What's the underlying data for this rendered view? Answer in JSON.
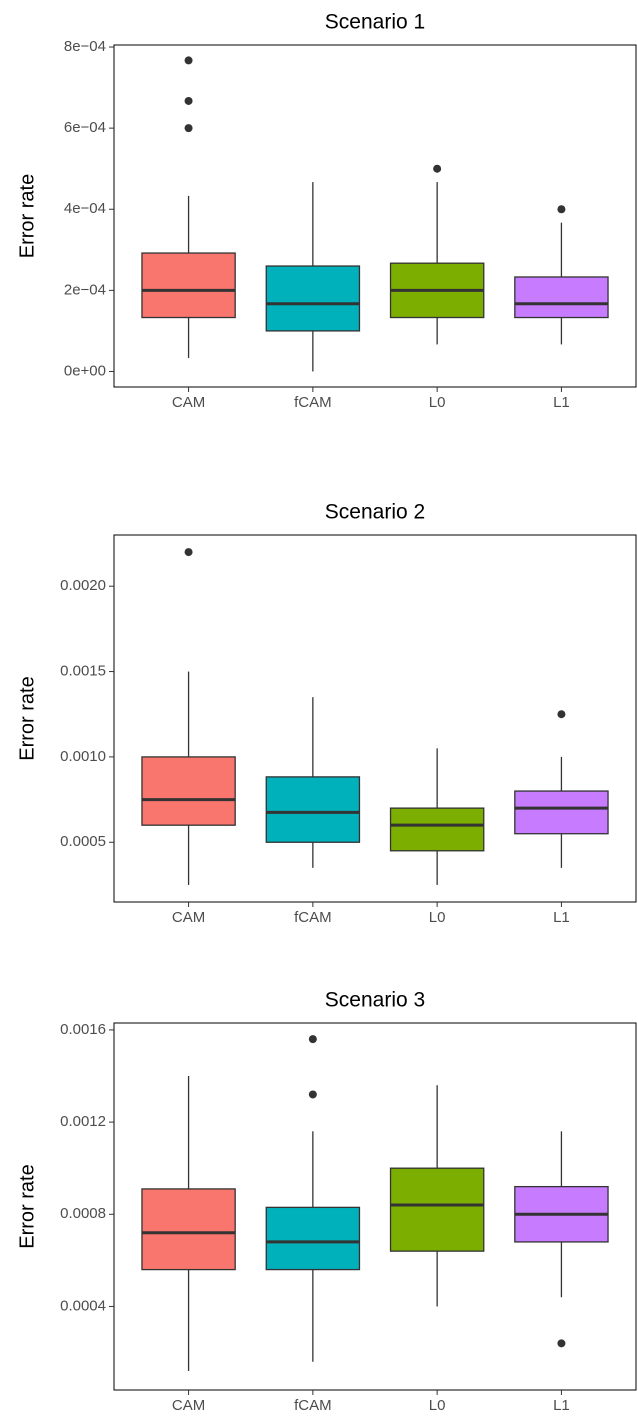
{
  "chart_data": [
    {
      "type": "box",
      "title": "Scenario 1",
      "y_label": "Error rate",
      "categories": [
        "CAM",
        "fCAM",
        "L0",
        "L1"
      ],
      "colors": [
        "#f8766d",
        "#00b0bb",
        "#7cae00",
        "#c77cff"
      ],
      "boxes": [
        {
          "min": 3.33e-05,
          "q1": 0.000133,
          "median": 0.0002,
          "q3": 0.000292,
          "max": 0.000433,
          "outliers": [
            0.0006,
            0.000667,
            0.000767
          ]
        },
        {
          "min": 0,
          "q1": 0.0001,
          "median": 0.000167,
          "q3": 0.00026,
          "max": 0.000467,
          "outliers": []
        },
        {
          "min": 6.67e-05,
          "q1": 0.000133,
          "median": 0.0002,
          "q3": 0.000267,
          "max": 0.000467,
          "outliers": [
            0.0005
          ]
        },
        {
          "min": 6.67e-05,
          "q1": 0.000133,
          "median": 0.000167,
          "q3": 0.000233,
          "max": 0.000367,
          "outliers": [
            0.0004
          ]
        }
      ],
      "ylim": [
        -3.83e-05,
        0.000805
      ],
      "yticks": [
        {
          "value": 0,
          "label": "0e+00"
        },
        {
          "value": 0.0002,
          "label": "2e−04"
        },
        {
          "value": 0.0004,
          "label": "4e−04"
        },
        {
          "value": 0.0006,
          "label": "6e−04"
        },
        {
          "value": 0.0008,
          "label": "8e−04"
        }
      ]
    },
    {
      "type": "box",
      "title": "Scenario 2",
      "y_label": "Error rate",
      "categories": [
        "CAM",
        "fCAM",
        "L0",
        "L1"
      ],
      "colors": [
        "#f8766d",
        "#00b0bb",
        "#7cae00",
        "#c77cff"
      ],
      "boxes": [
        {
          "min": 0.00025,
          "q1": 0.0006,
          "median": 0.00075,
          "q3": 0.001,
          "max": 0.0015,
          "outliers": [
            0.0022
          ]
        },
        {
          "min": 0.00035,
          "q1": 0.0005,
          "median": 0.000675,
          "q3": 0.000883,
          "max": 0.00135,
          "outliers": []
        },
        {
          "min": 0.00025,
          "q1": 0.00045,
          "median": 0.0006,
          "q3": 0.0007,
          "max": 0.00105,
          "outliers": []
        },
        {
          "min": 0.00035,
          "q1": 0.00055,
          "median": 0.0007,
          "q3": 0.0008,
          "max": 0.001,
          "outliers": [
            0.00125
          ]
        }
      ],
      "ylim": [
        0.00015,
        0.0023
      ],
      "yticks": [
        0.0005,
        {
          "value": 0.001,
          "label": "0.0010"
        },
        0.0015,
        {
          "value": 0.002,
          "label": "0.0020"
        }
      ]
    },
    {
      "type": "box",
      "title": "Scenario 3",
      "y_label": "Error rate",
      "categories": [
        "CAM",
        "fCAM",
        "L0",
        "L1"
      ],
      "colors": [
        "#f8766d",
        "#00b0bb",
        "#7cae00",
        "#c77cff"
      ],
      "boxes": [
        {
          "min": 0.00012,
          "q1": 0.00056,
          "median": 0.00072,
          "q3": 0.00091,
          "max": 0.0014,
          "outliers": []
        },
        {
          "min": 0.00016,
          "q1": 0.00056,
          "median": 0.00068,
          "q3": 0.00083,
          "max": 0.00116,
          "outliers": [
            0.00132,
            0.00156
          ]
        },
        {
          "min": 0.0004,
          "q1": 0.00064,
          "median": 0.00084,
          "q3": 0.001,
          "max": 0.00136,
          "outliers": []
        },
        {
          "min": 0.00044,
          "q1": 0.00068,
          "median": 0.0008,
          "q3": 0.00092,
          "max": 0.00116,
          "outliers": [
            0.00024
          ]
        }
      ],
      "ylim": [
        3.75e-05,
        0.00163
      ],
      "yticks": [
        0.0004,
        0.0008,
        0.0012,
        0.0016
      ]
    }
  ]
}
